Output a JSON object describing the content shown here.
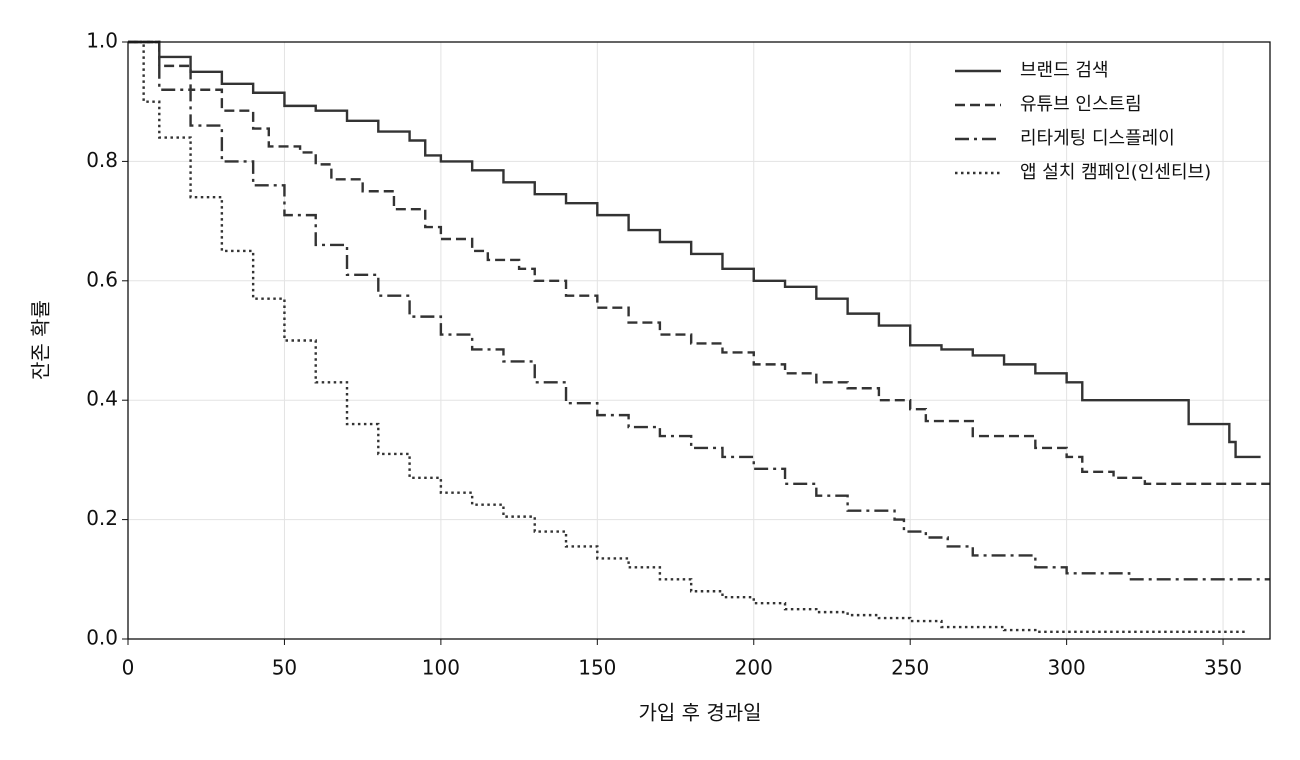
{
  "chart_data": {
    "type": "line",
    "step": "post",
    "grid": true,
    "legend": "upper right",
    "xlabel": "가입 후 경과일",
    "ylabel": "잔존 확률",
    "xlim": [
      0,
      365
    ],
    "ylim": [
      0,
      1
    ],
    "xticks": [
      0,
      50,
      100,
      150,
      200,
      250,
      300,
      350
    ],
    "yticks": [
      {
        "value": 0,
        "label": "0.0"
      },
      0.2,
      0.4,
      0.6,
      0.8,
      {
        "value": 1,
        "label": "1.0"
      }
    ],
    "series": [
      {
        "name": "브랜드 검색",
        "color": "#333333",
        "linestyle": "solid",
        "x": [
          0,
          10,
          20,
          30,
          40,
          50,
          60,
          70,
          80,
          90,
          95,
          100,
          110,
          120,
          130,
          140,
          150,
          160,
          170,
          180,
          190,
          200,
          210,
          220,
          230,
          240,
          250,
          260,
          270,
          280,
          290,
          300,
          305,
          339,
          352,
          354,
          362
        ],
        "values": [
          1.0,
          0.975,
          0.95,
          0.93,
          0.915,
          0.893,
          0.885,
          0.868,
          0.85,
          0.835,
          0.81,
          0.8,
          0.785,
          0.765,
          0.745,
          0.73,
          0.71,
          0.685,
          0.665,
          0.645,
          0.62,
          0.6,
          0.59,
          0.57,
          0.545,
          0.525,
          0.492,
          0.485,
          0.475,
          0.46,
          0.445,
          0.43,
          0.4,
          0.36,
          0.33,
          0.305,
          0.305
        ]
      },
      {
        "name": "유튜브 인스트림",
        "color": "#333333",
        "linestyle": "dashed",
        "x": [
          0,
          10,
          20,
          30,
          40,
          45,
          55,
          60,
          65,
          75,
          85,
          95,
          100,
          110,
          115,
          125,
          130,
          140,
          150,
          160,
          170,
          180,
          190,
          200,
          210,
          220,
          230,
          240,
          250,
          255,
          270,
          290,
          300,
          305,
          315,
          325,
          365
        ],
        "values": [
          1.0,
          0.96,
          0.92,
          0.885,
          0.855,
          0.825,
          0.815,
          0.795,
          0.77,
          0.75,
          0.72,
          0.69,
          0.67,
          0.65,
          0.635,
          0.62,
          0.6,
          0.575,
          0.555,
          0.53,
          0.51,
          0.495,
          0.48,
          0.46,
          0.445,
          0.43,
          0.42,
          0.4,
          0.385,
          0.365,
          0.34,
          0.32,
          0.305,
          0.28,
          0.27,
          0.26,
          0.26
        ]
      },
      {
        "name": "리타게팅 디스플레이",
        "color": "#333333",
        "linestyle": "dashdot",
        "x": [
          0,
          10,
          20,
          30,
          40,
          50,
          60,
          70,
          80,
          90,
          100,
          110,
          120,
          130,
          140,
          150,
          160,
          170,
          180,
          190,
          200,
          210,
          220,
          230,
          245,
          248,
          255,
          262,
          270,
          290,
          300,
          320,
          365
        ],
        "values": [
          1.0,
          0.92,
          0.86,
          0.8,
          0.76,
          0.71,
          0.66,
          0.61,
          0.575,
          0.54,
          0.51,
          0.485,
          0.465,
          0.43,
          0.395,
          0.375,
          0.355,
          0.34,
          0.32,
          0.305,
          0.285,
          0.26,
          0.24,
          0.215,
          0.2,
          0.18,
          0.17,
          0.155,
          0.14,
          0.12,
          0.11,
          0.1,
          0.1
        ]
      },
      {
        "name": "앱 설치 캠페인(인센티브)",
        "color": "#333333",
        "linestyle": "dotted",
        "x": [
          0,
          5,
          10,
          20,
          30,
          40,
          50,
          60,
          70,
          80,
          90,
          100,
          110,
          120,
          130,
          140,
          150,
          160,
          170,
          180,
          190,
          200,
          210,
          220,
          230,
          240,
          250,
          260,
          280,
          290,
          357
        ],
        "values": [
          1.0,
          0.9,
          0.84,
          0.74,
          0.65,
          0.57,
          0.5,
          0.43,
          0.36,
          0.31,
          0.27,
          0.245,
          0.225,
          0.205,
          0.18,
          0.155,
          0.135,
          0.12,
          0.1,
          0.08,
          0.07,
          0.06,
          0.05,
          0.045,
          0.04,
          0.035,
          0.03,
          0.02,
          0.015,
          0.012,
          0.012
        ]
      }
    ]
  }
}
